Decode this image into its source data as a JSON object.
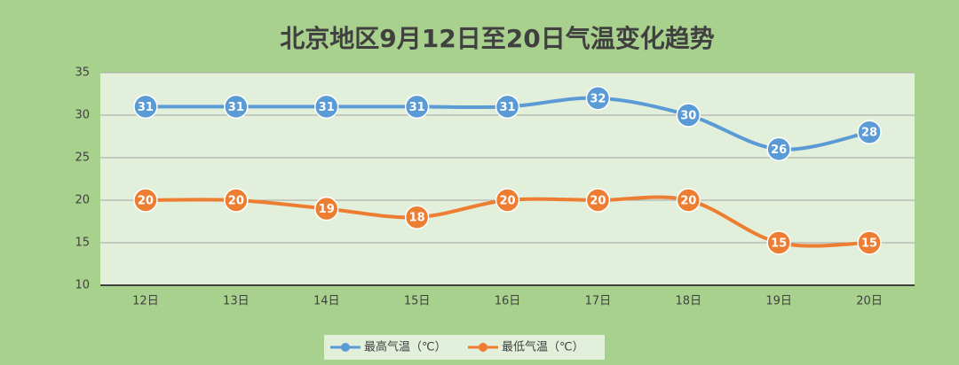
{
  "chart_data": {
    "type": "line",
    "title": "北京地区9月12日至20日气温变化趋势",
    "categories": [
      "12日",
      "13日",
      "14日",
      "15日",
      "16日",
      "17日",
      "18日",
      "19日",
      "20日"
    ],
    "series": [
      {
        "name": "最高气温（℃）",
        "color": "#5b9bd5",
        "values": [
          31,
          31,
          31,
          31,
          31,
          32,
          30,
          26,
          28
        ]
      },
      {
        "name": "最低气温（℃）",
        "color": "#ed7d31",
        "values": [
          20,
          20,
          19,
          18,
          20,
          20,
          20,
          15,
          15
        ]
      }
    ],
    "ylim": [
      10,
      35
    ],
    "yticks": [
      10,
      15,
      20,
      25,
      30,
      35
    ],
    "grid": true,
    "smooth": true,
    "legend": "bottom"
  }
}
